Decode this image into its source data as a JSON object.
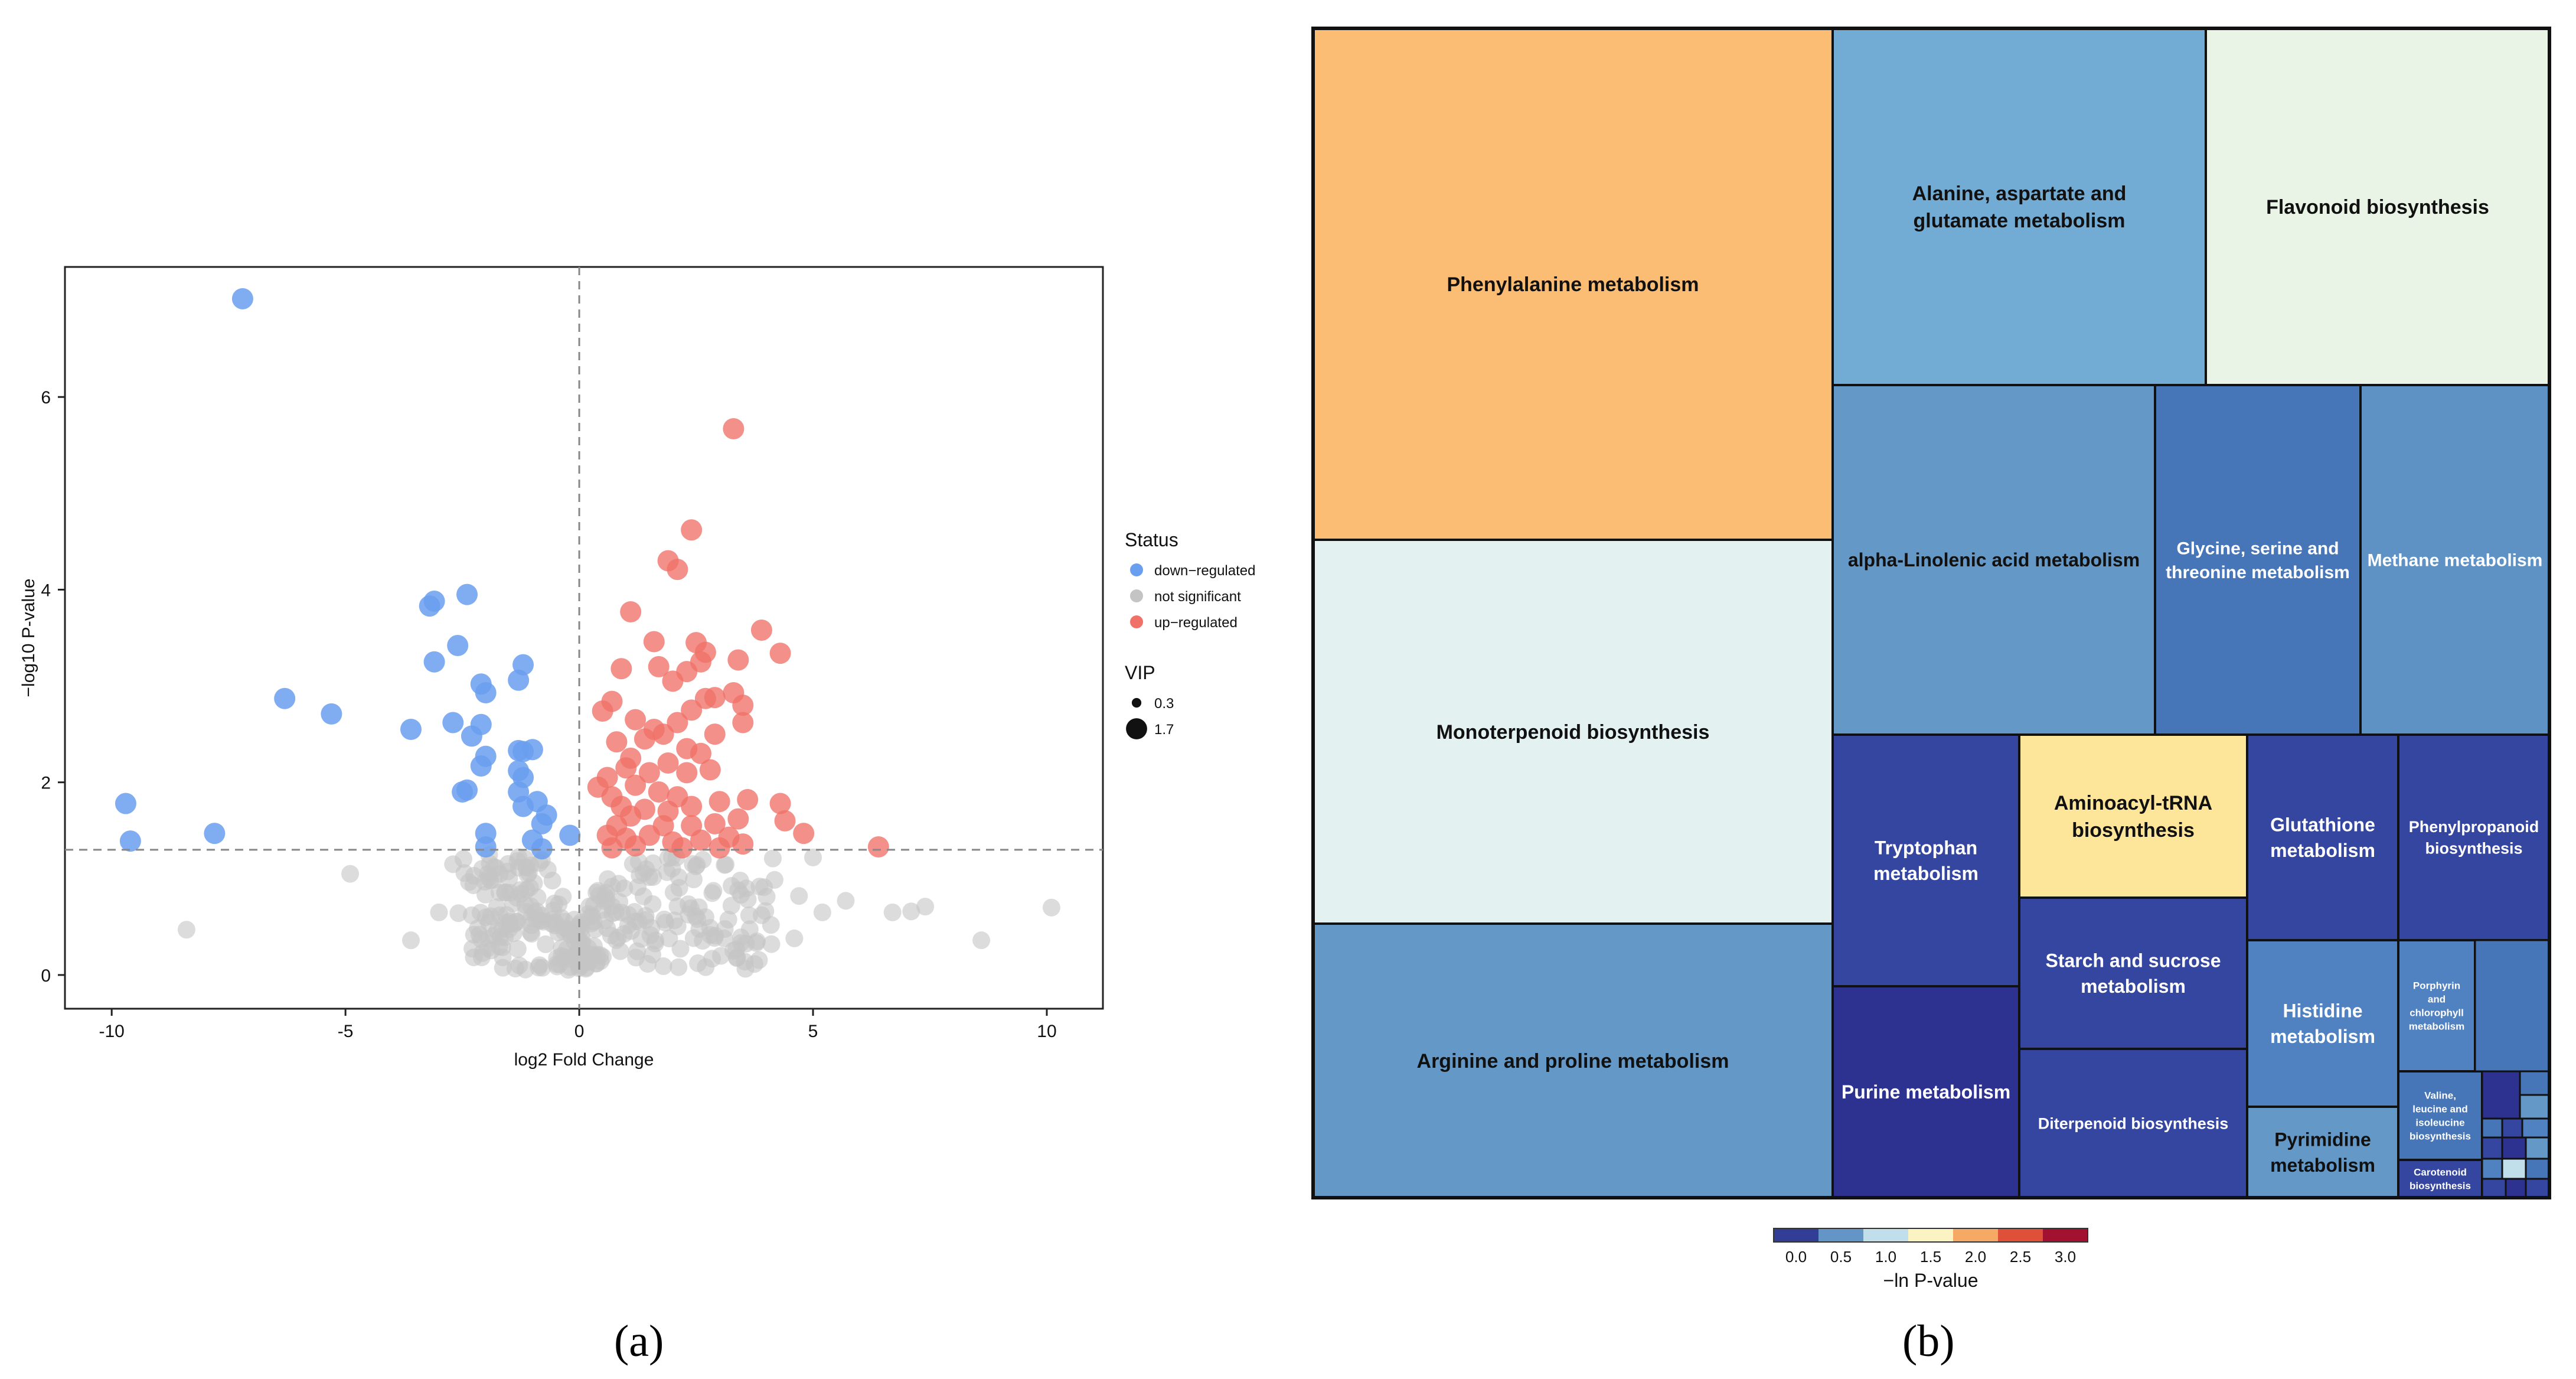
{
  "panels": {
    "a": {
      "label": "(a)",
      "chart_data": {
        "type": "scatter",
        "title": "",
        "xlabel": "log2 Fold Change",
        "ylabel": "−log10 P-value",
        "xlim": [
          -11,
          11.2
        ],
        "ylim": [
          -0.35,
          7.35
        ],
        "xticks": [
          -10,
          -5,
          0,
          5,
          10
        ],
        "yticks": [
          0,
          2,
          4,
          6
        ],
        "thresholds": {
          "x": 0,
          "y": 1.3
        },
        "legend": {
          "status_title": "Status",
          "status_items": [
            {
              "label": "down−regulated",
              "color": "#6a9ff0"
            },
            {
              "label": "not significant",
              "color": "#c4c4c4"
            },
            {
              "label": "up−regulated",
              "color": "#ef7168"
            }
          ],
          "vip_title": "VIP",
          "vip_items": [
            {
              "label": "0.3",
              "size": 0.3
            },
            {
              "label": "1.7",
              "size": 1.7
            }
          ]
        },
        "series": [
          {
            "name": "down−regulated",
            "color": "#6a9ff0",
            "points": [
              [
                -7.2,
                7.02
              ],
              [
                -2.4,
                3.95
              ],
              [
                -3.1,
                3.88
              ],
              [
                -3.2,
                3.83
              ],
              [
                -2.6,
                3.42
              ],
              [
                -3.1,
                3.25
              ],
              [
                -1.2,
                3.22
              ],
              [
                -1.3,
                3.06
              ],
              [
                -2.1,
                3.02
              ],
              [
                -2.0,
                2.93
              ],
              [
                -6.3,
                2.87
              ],
              [
                -5.3,
                2.71
              ],
              [
                -2.7,
                2.62
              ],
              [
                -2.1,
                2.6
              ],
              [
                -3.6,
                2.55
              ],
              [
                -2.3,
                2.48
              ],
              [
                -1.3,
                2.33
              ],
              [
                -1.2,
                2.32
              ],
              [
                -1.0,
                2.34
              ],
              [
                -2.0,
                2.27
              ],
              [
                -2.1,
                2.17
              ],
              [
                -1.3,
                2.12
              ],
              [
                -1.2,
                2.05
              ],
              [
                -2.5,
                1.9
              ],
              [
                -2.4,
                1.92
              ],
              [
                -1.3,
                1.9
              ],
              [
                -1.2,
                1.75
              ],
              [
                -0.9,
                1.8
              ],
              [
                -0.7,
                1.66
              ],
              [
                -0.8,
                1.57
              ],
              [
                -9.7,
                1.78
              ],
              [
                -9.6,
                1.39
              ],
              [
                -7.8,
                1.47
              ],
              [
                -2.0,
                1.47
              ],
              [
                -1.0,
                1.4
              ],
              [
                -2.0,
                1.33
              ],
              [
                -0.8,
                1.31
              ],
              [
                -0.2,
                1.45
              ]
            ]
          },
          {
            "name": "up−regulated",
            "color": "#ef7168",
            "points": [
              [
                3.3,
                5.67
              ],
              [
                2.4,
                4.62
              ],
              [
                1.9,
                4.3
              ],
              [
                2.1,
                4.21
              ],
              [
                1.1,
                3.77
              ],
              [
                3.9,
                3.58
              ],
              [
                1.6,
                3.46
              ],
              [
                2.5,
                3.45
              ],
              [
                4.3,
                3.34
              ],
              [
                2.7,
                3.35
              ],
              [
                2.6,
                3.25
              ],
              [
                3.4,
                3.27
              ],
              [
                1.7,
                3.2
              ],
              [
                0.9,
                3.18
              ],
              [
                2.3,
                3.15
              ],
              [
                2.0,
                3.05
              ],
              [
                3.3,
                2.93
              ],
              [
                2.9,
                2.88
              ],
              [
                0.7,
                2.84
              ],
              [
                2.7,
                2.87
              ],
              [
                3.5,
                2.8
              ],
              [
                2.4,
                2.75
              ],
              [
                1.2,
                2.65
              ],
              [
                1.6,
                2.55
              ],
              [
                2.1,
                2.62
              ],
              [
                0.5,
                2.74
              ],
              [
                1.8,
                2.5
              ],
              [
                2.9,
                2.5
              ],
              [
                3.5,
                2.62
              ],
              [
                1.4,
                2.45
              ],
              [
                0.8,
                2.42
              ],
              [
                1.1,
                2.25
              ],
              [
                2.3,
                2.35
              ],
              [
                2.6,
                2.3
              ],
              [
                1.0,
                2.15
              ],
              [
                1.5,
                2.1
              ],
              [
                1.9,
                2.2
              ],
              [
                2.3,
                2.1
              ],
              [
                2.8,
                2.13
              ],
              [
                0.6,
                2.05
              ],
              [
                0.4,
                1.95
              ],
              [
                1.2,
                1.97
              ],
              [
                1.7,
                1.9
              ],
              [
                2.1,
                1.85
              ],
              [
                0.7,
                1.85
              ],
              [
                0.9,
                1.75
              ],
              [
                1.4,
                1.72
              ],
              [
                1.9,
                1.7
              ],
              [
                2.4,
                1.75
              ],
              [
                3.0,
                1.8
              ],
              [
                3.6,
                1.82
              ],
              [
                4.3,
                1.78
              ],
              [
                4.4,
                1.6
              ],
              [
                3.4,
                1.62
              ],
              [
                2.9,
                1.57
              ],
              [
                2.4,
                1.55
              ],
              [
                1.8,
                1.55
              ],
              [
                1.1,
                1.65
              ],
              [
                0.8,
                1.55
              ],
              [
                0.6,
                1.45
              ],
              [
                1.0,
                1.42
              ],
              [
                1.5,
                1.45
              ],
              [
                2.0,
                1.38
              ],
              [
                2.6,
                1.4
              ],
              [
                3.2,
                1.43
              ],
              [
                3.5,
                1.36
              ],
              [
                4.8,
                1.47
              ],
              [
                6.4,
                1.33
              ],
              [
                0.7,
                1.32
              ],
              [
                1.2,
                1.34
              ],
              [
                2.2,
                1.32
              ],
              [
                3.0,
                1.32
              ]
            ]
          },
          {
            "name": "not significant",
            "color": "#c4c4c4",
            "generated_count": 300,
            "points": [
              [
                -8.4,
                0.47
              ],
              [
                -4.9,
                1.05
              ],
              [
                -3.6,
                0.36
              ],
              [
                -2.7,
                1.15
              ],
              [
                -2.3,
                0.62
              ],
              [
                -2.1,
                0.37
              ],
              [
                -1.7,
                0.62
              ],
              [
                -1.5,
                1.0
              ],
              [
                -3.0,
                0.65
              ],
              [
                5.0,
                1.22
              ],
              [
                5.2,
                0.65
              ],
              [
                5.7,
                0.77
              ],
              [
                6.7,
                0.65
              ],
              [
                7.1,
                0.66
              ],
              [
                7.4,
                0.71
              ],
              [
                8.6,
                0.36
              ],
              [
                10.1,
                0.7
              ],
              [
                4.1,
                0.52
              ],
              [
                4.7,
                0.82
              ],
              [
                4.6,
                0.38
              ],
              [
                3.9,
                0.62
              ],
              [
                3.4,
                0.88
              ],
              [
                3.8,
                0.35
              ],
              [
                3.1,
                0.38
              ],
              [
                2.7,
                0.6
              ]
            ]
          }
        ]
      }
    },
    "b": {
      "label": "(b)",
      "chart_data": {
        "type": "treemap",
        "value_label": "−ln P-value",
        "colorbar": {
          "title": "−ln P-value",
          "ticks": [
            "0.0",
            "0.5",
            "1.0",
            "1.5",
            "2.0",
            "2.5",
            "3.0"
          ],
          "bins": [
            {
              "range": [
                0.0,
                0.5
              ],
              "color": "#323d96"
            },
            {
              "range": [
                0.5,
                1.0
              ],
              "color": "#6396c6"
            },
            {
              "range": [
                1.0,
                1.5
              ],
              "color": "#c1deeb"
            },
            {
              "range": [
                1.5,
                2.0
              ],
              "color": "#fcf3c2"
            },
            {
              "range": [
                2.0,
                2.5
              ],
              "color": "#f6a965"
            },
            {
              "range": [
                2.5,
                3.0
              ],
              "color": "#de5038"
            },
            {
              "range": [
                3.0,
                3.5
              ],
              "color": "#a21130"
            }
          ]
        },
        "pathways": [
          {
            "name": "Phenylalanine metabolism",
            "value": 1.9,
            "color": "#fbbd74"
          },
          {
            "name": "Monoterpenoid biosynthesis",
            "value": 1.1,
            "color": "#e3f2f1"
          },
          {
            "name": "Arginine and proline metabolism",
            "value": 0.6,
            "color": "#6498c7"
          },
          {
            "name": "Alanine, aspartate and glutamate metabolism",
            "value": 0.7,
            "color": "#72abd3"
          },
          {
            "name": "Flavonoid biosynthesis",
            "value": 1.3,
            "color": "#e9f4e6"
          },
          {
            "name": "alpha-Linolenic acid metabolism",
            "value": 0.6,
            "color": "#6498c7"
          },
          {
            "name": "Glycine, serine and threonine metabolism",
            "value": 0.4,
            "color": "#4675b8"
          },
          {
            "name": "Methane metabolism",
            "value": 0.6,
            "color": "#5e91c4"
          },
          {
            "name": "Tryptophan metabolism",
            "value": 0.2,
            "color": "#3546a0"
          },
          {
            "name": "Purine metabolism",
            "value": 0.1,
            "color": "#2d3290"
          },
          {
            "name": "Aminoacyl-tRNA biosynthesis",
            "value": 1.7,
            "color": "#fde69a"
          },
          {
            "name": "Starch and sucrose metabolism",
            "value": 0.2,
            "color": "#3546a0"
          },
          {
            "name": "Diterpenoid biosynthesis",
            "value": 0.2,
            "color": "#3546a0"
          },
          {
            "name": "Glutathione metabolism",
            "value": 0.2,
            "color": "#3546a0"
          },
          {
            "name": "Phenylpropanoid biosynthesis",
            "value": 0.2,
            "color": "#3546a0"
          },
          {
            "name": "Histidine metabolism",
            "value": 0.5,
            "color": "#5081c0"
          },
          {
            "name": "Porphyrin and chlorophyll metabolism",
            "value": 0.5,
            "color": "#5081c0"
          },
          {
            "name": "Pyrimidine metabolism",
            "value": 0.6,
            "color": "#6498c7"
          },
          {
            "name": "Valine, leucine and isoleucine biosynthesis",
            "value": 0.4,
            "color": "#4675b8"
          },
          {
            "name": "Carotenoid biosynthesis",
            "value": 0.2,
            "color": "#3546a0"
          }
        ]
      }
    }
  }
}
